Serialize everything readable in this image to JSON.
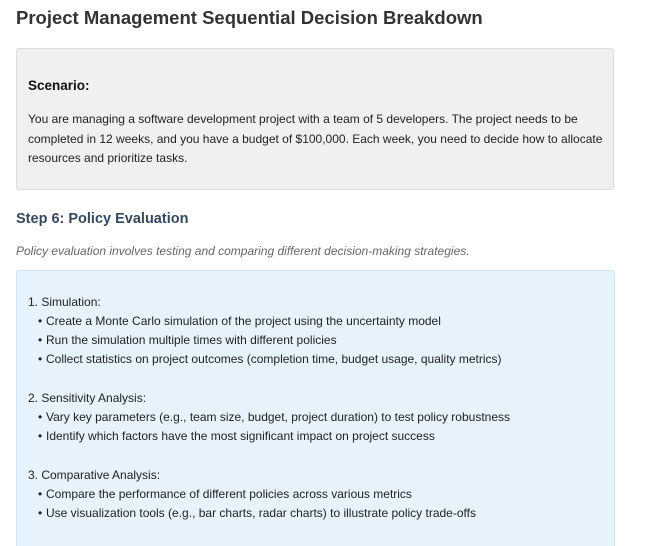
{
  "title": "Project Management Sequential Decision Breakdown",
  "scenario": {
    "heading": "Scenario:",
    "text": "You are managing a software development project with a team of 5 developers. The project needs to be completed in 12 weeks, and you have a budget of $100,000. Each week, you need to decide how to allocate resources and prioritize tasks."
  },
  "step": {
    "title": "Step 6: Policy Evaluation",
    "intro": "Policy evaluation involves testing and comparing different decision-making strategies."
  },
  "bullet_char": "•",
  "sections": [
    {
      "title": "1. Simulation:",
      "bullets": [
        "Create a Monte Carlo simulation of the project using the uncertainty model",
        "Run the simulation multiple times with different policies",
        "Collect statistics on project outcomes (completion time, budget usage, quality metrics)"
      ]
    },
    {
      "title": "2. Sensitivity Analysis:",
      "bullets": [
        "Vary key parameters (e.g., team size, budget, project duration) to test policy robustness",
        "Identify which factors have the most significant impact on project success"
      ]
    },
    {
      "title": "3. Comparative Analysis:",
      "bullets": [
        "Compare the performance of different policies across various metrics",
        "Use visualization tools (e.g., bar charts, radar charts) to illustrate policy trade-offs"
      ]
    }
  ]
}
